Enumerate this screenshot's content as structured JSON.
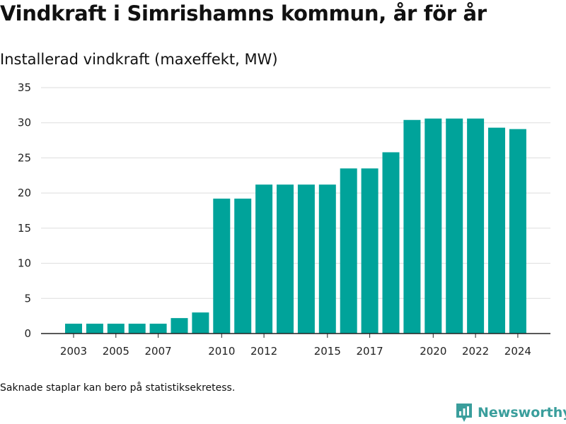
{
  "title": "Vindkraft i Simrishamns kommun, år för år",
  "subtitle": "Installerad vindkraft (maxeffekt, MW)",
  "footnote": "Saknade staplar kan bero på statistiksekretess.",
  "brand": {
    "name": "Newsworthy",
    "icon": "newsworthy-logo-icon",
    "color": "#3a9e9c"
  },
  "colors": {
    "bar": "#00a39a",
    "grid": "#dddddd",
    "axis": "#222222"
  },
  "chart_data": {
    "type": "bar",
    "title": "Vindkraft i Simrishamns kommun, år för år",
    "ylabel": "Installerad vindkraft (maxeffekt, MW)",
    "xlabel": "",
    "categories": [
      2003,
      2004,
      2005,
      2006,
      2007,
      2008,
      2009,
      2010,
      2011,
      2012,
      2013,
      2014,
      2015,
      2016,
      2017,
      2018,
      2019,
      2020,
      2021,
      2022,
      2023,
      2024
    ],
    "values": [
      1.4,
      1.4,
      1.4,
      1.4,
      1.4,
      2.2,
      3.0,
      19.2,
      19.2,
      21.2,
      21.2,
      21.2,
      21.2,
      23.5,
      23.5,
      25.8,
      30.4,
      30.6,
      30.6,
      30.6,
      29.3,
      29.1
    ],
    "x_tick_labels": [
      "2003",
      "2005",
      "2007",
      "2010",
      "2012",
      "2015",
      "2017",
      "2020",
      "2022",
      "2024"
    ],
    "y_ticks": [
      0,
      5,
      10,
      15,
      20,
      25,
      30,
      35
    ],
    "ylim": [
      0,
      35
    ],
    "grid": true,
    "legend": "none"
  }
}
